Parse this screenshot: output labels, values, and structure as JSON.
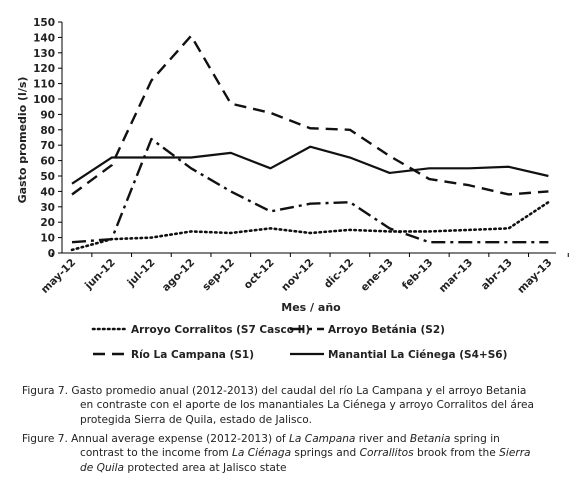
{
  "chart_data": {
    "type": "line",
    "title": "",
    "xlabel": "Mes / año",
    "ylabel": "Gasto promedio   (l/s)",
    "ylim": [
      0,
      150
    ],
    "yticks": [
      0,
      10,
      20,
      30,
      40,
      50,
      60,
      70,
      80,
      90,
      100,
      110,
      120,
      130,
      140,
      150
    ],
    "grid": false,
    "legend_position": "bottom",
    "categories": [
      "may-12",
      "jun-12",
      "jul-12",
      "ago-12",
      "sep-12",
      "oct-12",
      "nov-12",
      "dic-12",
      "ene-13",
      "feb-13",
      "mar-13",
      "abr-13",
      "may-13"
    ],
    "series": [
      {
        "name": "Arroyo Corralitos (S7 Casco II)",
        "style": "dotted",
        "values": [
          2,
          9,
          10,
          14,
          13,
          16,
          13,
          15,
          14,
          14,
          15,
          16,
          33
        ]
      },
      {
        "name": "Arroyo Betánia (S2)",
        "style": "dashdot",
        "values": [
          7,
          9,
          74,
          55,
          40,
          27,
          32,
          33,
          16,
          7,
          7,
          7,
          7
        ]
      },
      {
        "name": "Río La Campana (S1)",
        "style": "dashed",
        "values": [
          38,
          57,
          112,
          141,
          97,
          91,
          81,
          80,
          63,
          48,
          44,
          38,
          40
        ]
      },
      {
        "name": "Manantial La Ciénega (S4+S6)",
        "style": "solid",
        "values": [
          45,
          62,
          62,
          62,
          65,
          55,
          69,
          62,
          52,
          55,
          55,
          56,
          50
        ]
      }
    ]
  },
  "caption_es": {
    "lead": "Figura 7. Gasto promedio anual (2012-2013) del caudal del río La Campana y el arroyo Betania",
    "l2": "en contraste con el aporte de los manantiales La Ciénega y arroyo Corralitos del área",
    "l3": "protegida Sierra de Quila, estado de Jalisco."
  },
  "caption_en": {
    "p1": "Figure 7. Annual average expense (2012-2013) of ",
    "i1": "La Campana",
    "p2": " river and ",
    "i2": "Betania",
    "p3": " spring in",
    "p4": "contrast to the income from ",
    "i3": "La Ciénaga",
    "p5": " springs and ",
    "i4": "Corrallitos",
    "p6": " brook from the ",
    "i5": "Sierra",
    "i6": "de Quila",
    "p7": " protected area at Jalisco state"
  }
}
